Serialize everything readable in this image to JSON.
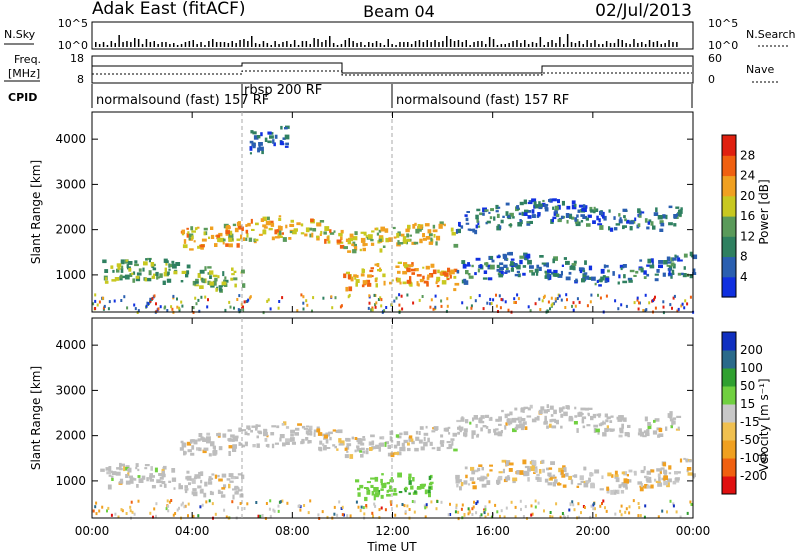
{
  "header": {
    "station": "Adak East (fitACF)",
    "beam": "Beam 04",
    "date": "02/Jul/2013"
  },
  "panels": {
    "nsky": {
      "left_label": "N.Sky",
      "right_label": "N.Search",
      "ticks_left": [
        "10^5",
        "10^0"
      ],
      "ticks_right": [
        "10^5",
        "10^0"
      ]
    },
    "freq": {
      "left_label_1": "Freq.",
      "left_label_2": "[MHz]",
      "right_label": "Nave",
      "ticks_left": [
        "18",
        "8"
      ],
      "ticks_right": [
        "60",
        "0"
      ]
    },
    "cpid": {
      "label": "CPID",
      "segments": [
        {
          "label": "normalsound (fast) 157 RF",
          "start_hour": 0,
          "end_hour": 6
        },
        {
          "label": "rbsp 200 RF",
          "start_hour": 6,
          "end_hour": 12
        },
        {
          "label": "normalsound (fast) 157 RF",
          "start_hour": 12,
          "end_hour": 24
        }
      ]
    }
  },
  "colors": {
    "power_scale": [
      "#1030e0",
      "#2a5fb0",
      "#2f8060",
      "#5a9a5a",
      "#c8c820",
      "#f0a020",
      "#f06010",
      "#e02010"
    ],
    "velocity_scale": [
      "#e01010",
      "#f06010",
      "#f0a020",
      "#f0c050",
      "#c8c8c8",
      "#70d040",
      "#30a030",
      "#2a6a8a",
      "#1030c0"
    ],
    "ground_scatter": "#bdbdbd",
    "frame": "#000000"
  },
  "chart_data": [
    {
      "type": "heatmap",
      "name_text": "Power",
      "ylabel": "Slant Range [km]",
      "yticks": [
        1000,
        2000,
        3000,
        4000
      ],
      "ylim": [
        180,
        4600
      ],
      "xlim": [
        0,
        24
      ],
      "colorbar": {
        "label": "Power [dB]",
        "ticks": [
          "4",
          "8",
          "12",
          "16",
          "20",
          "24",
          "28"
        ],
        "range": [
          0,
          32
        ]
      },
      "features": [
        {
          "start_hour": 0.3,
          "end_hour": 6.0,
          "range_km": 1050,
          "level_db": 14
        },
        {
          "start_hour": 3.5,
          "end_hour": 10.0,
          "range_km": 1950,
          "level_db": 20
        },
        {
          "start_hour": 10.0,
          "end_hour": 14.5,
          "range_km": 1850,
          "level_db": 18
        },
        {
          "start_hour": 10.0,
          "end_hour": 14.5,
          "range_km": 950,
          "level_db": 22
        },
        {
          "start_hour": 14.5,
          "end_hour": 23.5,
          "range_km": 2350,
          "level_db": 8
        },
        {
          "start_hour": 14.5,
          "end_hour": 24.0,
          "range_km": 1150,
          "level_db": 8
        },
        {
          "start_hour": 6.2,
          "end_hour": 7.8,
          "range_km": 4050,
          "level_db": 6
        }
      ]
    },
    {
      "type": "heatmap",
      "name_text": "Velocity",
      "ylabel": "Slant Range [km]",
      "yticks": [
        1000,
        2000,
        3000,
        4000
      ],
      "ylim": [
        180,
        4600
      ],
      "xlim": [
        0,
        24
      ],
      "xlabel": "Time UT",
      "xticks": [
        "00:00",
        "04:00",
        "08:00",
        "12:00",
        "16:00",
        "20:00",
        "00:00"
      ],
      "colorbar": {
        "label": "Velocity [m s⁻¹]",
        "ticks": [
          "200",
          "100",
          "50",
          "15",
          "-15",
          "-50",
          "-100",
          "-200"
        ],
        "range": [
          -250,
          250
        ]
      },
      "features": [
        {
          "start_hour": 0.3,
          "end_hour": 6.0,
          "range_km": 1050,
          "velocity": 0,
          "ground_scatter": true
        },
        {
          "start_hour": 3.5,
          "end_hour": 10.0,
          "range_km": 1950,
          "velocity": 0,
          "ground_scatter": true
        },
        {
          "start_hour": 10.0,
          "end_hour": 14.5,
          "range_km": 1850,
          "velocity": 0,
          "ground_scatter": true
        },
        {
          "start_hour": 10.5,
          "end_hour": 13.5,
          "range_km": 850,
          "velocity": 40,
          "ground_scatter": false
        },
        {
          "start_hour": 14.5,
          "end_hour": 23.5,
          "range_km": 2350,
          "velocity": 0,
          "ground_scatter": true
        },
        {
          "start_hour": 14.5,
          "end_hour": 24.0,
          "range_km": 1150,
          "velocity": -20,
          "ground_scatter": false
        }
      ]
    }
  ]
}
